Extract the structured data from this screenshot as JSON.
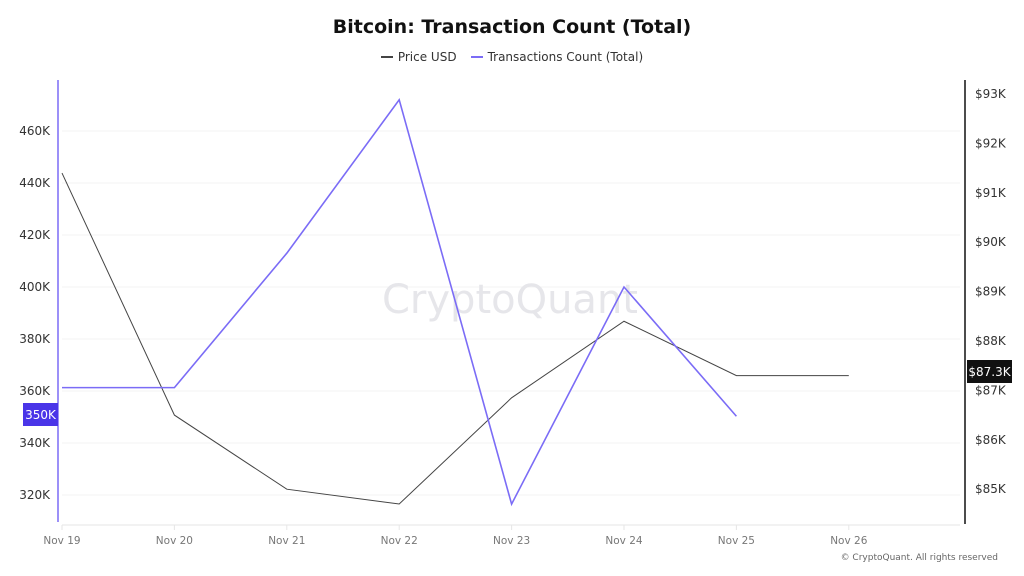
{
  "title": "Bitcoin: Transaction Count (Total)",
  "legend": [
    {
      "label": "Price USD",
      "color": "#444444"
    },
    {
      "label": "Transactions Count (Total)",
      "color": "#7b6cf6"
    }
  ],
  "watermark": "CryptoQuant",
  "copyright": "© CryptoQuant. All rights reserved",
  "badges": {
    "left": "350K",
    "right": "$87.3K"
  },
  "colors": {
    "tx_line": "#7b6cf6",
    "price_line": "#444444",
    "left_badge_bg": "#4a35e8",
    "right_badge_bg": "#111111",
    "left_axis": "#7b6cf6",
    "right_axis": "#111111"
  },
  "chart_data": {
    "type": "line",
    "title": "Bitcoin: Transaction Count (Total)",
    "xlabel": "",
    "ylabel_left": "Transactions Count (Total)",
    "ylabel_right": "Price USD",
    "categories": [
      "Nov 19",
      "Nov 20",
      "Nov 21",
      "Nov 22",
      "Nov 23",
      "Nov 24",
      "Nov 25",
      "Nov 26"
    ],
    "series": [
      {
        "name": "Price USD",
        "axis": "right",
        "color": "#444444",
        "values": [
          91400,
          86500,
          85000,
          84700,
          86850,
          88400,
          87300,
          87300
        ]
      },
      {
        "name": "Transactions Count (Total)",
        "axis": "left",
        "color": "#7b6cf6",
        "values": [
          361300,
          361300,
          413000,
          472000,
          316500,
          400000,
          350300,
          null
        ]
      }
    ],
    "left_axis": {
      "ticks": [
        "320K",
        "340K",
        "360K",
        "380K",
        "400K",
        "420K",
        "440K",
        "460K"
      ],
      "tick_values": [
        320000,
        340000,
        360000,
        380000,
        400000,
        420000,
        440000,
        460000
      ],
      "range": [
        308000,
        478000
      ]
    },
    "right_axis": {
      "ticks": [
        "$85K",
        "$86K",
        "$87K",
        "$88K",
        "$89K",
        "$90K",
        "$91K",
        "$92K",
        "$93K"
      ],
      "tick_values": [
        85000,
        86000,
        87000,
        88000,
        89000,
        90000,
        91000,
        92000,
        93000
      ],
      "range": [
        84300,
        93200
      ]
    },
    "current_value_labels": {
      "left": "350K",
      "right": "$87.3K"
    },
    "grid": true,
    "legend_position": "top"
  }
}
